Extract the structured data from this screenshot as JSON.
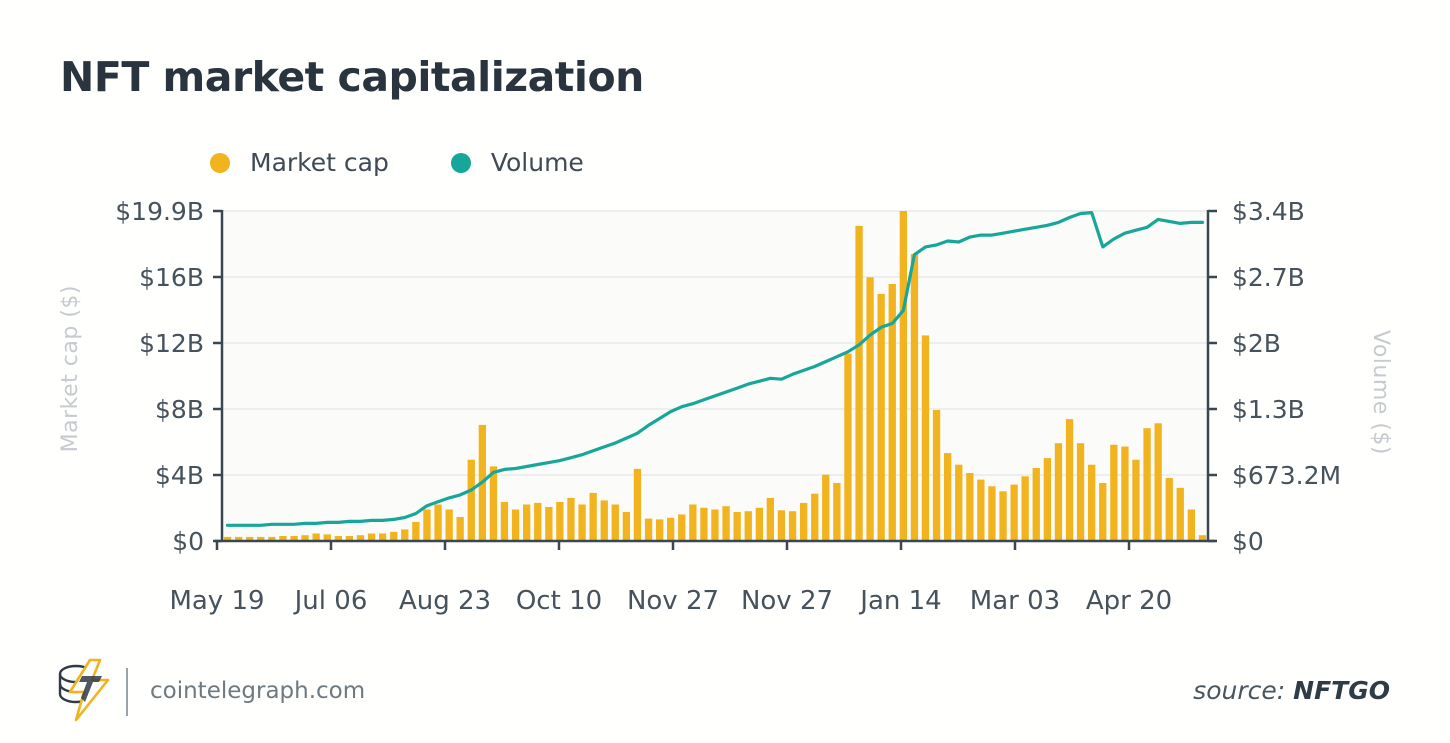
{
  "title": "NFT market capitalization",
  "footer": {
    "site": "cointelegraph.com",
    "source_prefix": "source:",
    "source_name": "NFTGO"
  },
  "colors": {
    "bar": "#F1B31E",
    "line": "#17A79A",
    "title": "#29343E",
    "tick_label": "#46525C",
    "axis_title": "#C6CBD0",
    "axis_line": "#3A4750",
    "grid": "#EDEEEE",
    "plot_bg": "#FBFBF9",
    "legend_text": "#3F4A55",
    "footer_text": "#6E7A80",
    "source_text": "#4A555E",
    "source_brand": "#2F3B47",
    "logo_dark": "#2F3B47",
    "logo_yellow": "#F1B31E"
  },
  "chart_data": {
    "type": "bar+line combo",
    "title": "NFT market capitalization",
    "x_tick_labels": [
      "May 19",
      "Jul 06",
      "Aug 23",
      "Oct 10",
      "Nov 27",
      "Nov 27",
      "Jan 14",
      "Mar 03",
      "Apr 20"
    ],
    "left_axis": {
      "label": "Market cap ($)",
      "ticks": [
        "$19.9B",
        "$16B",
        "$12B",
        "$8B",
        "$4B",
        "$0"
      ],
      "max": 19.9,
      "unit": "billions USD"
    },
    "right_axis": {
      "label": "Volume ($)",
      "ticks": [
        "$3.4B",
        "$2.7B",
        "$2B",
        "$1.3B",
        "$673.2M",
        "$0"
      ],
      "max": 3.366,
      "unit": "billions USD"
    },
    "grid": "horizontal only",
    "legend_position": "top-left above plot",
    "series": [
      {
        "name": "Market cap",
        "type": "bar",
        "axis": "left",
        "unit": "$B",
        "values": [
          0.25,
          0.25,
          0.25,
          0.25,
          0.25,
          0.3,
          0.3,
          0.35,
          0.45,
          0.4,
          0.3,
          0.3,
          0.35,
          0.45,
          0.45,
          0.55,
          0.7,
          1.15,
          1.9,
          2.2,
          1.9,
          1.45,
          4.9,
          7.0,
          4.5,
          2.35,
          1.9,
          2.2,
          2.3,
          2.05,
          2.35,
          2.6,
          2.2,
          2.9,
          2.45,
          2.2,
          1.75,
          4.35,
          1.35,
          1.3,
          1.4,
          1.6,
          2.2,
          2.0,
          1.9,
          2.1,
          1.75,
          1.8,
          2.0,
          2.6,
          1.85,
          1.8,
          2.3,
          2.85,
          4.0,
          3.5,
          11.3,
          19.0,
          15.9,
          14.9,
          15.5,
          19.9,
          17.3,
          12.4,
          7.9,
          5.3,
          4.6,
          4.1,
          3.7,
          3.3,
          3.0,
          3.4,
          3.9,
          4.4,
          5.0,
          5.9,
          7.35,
          5.9,
          4.6,
          3.5,
          5.8,
          5.7,
          4.9,
          6.8,
          7.1,
          3.8,
          3.2,
          1.9,
          0.35
        ]
      },
      {
        "name": "Volume",
        "type": "line",
        "axis": "right",
        "unit": "$B",
        "values": [
          0.16,
          0.16,
          0.16,
          0.16,
          0.17,
          0.17,
          0.17,
          0.18,
          0.18,
          0.19,
          0.19,
          0.2,
          0.2,
          0.21,
          0.21,
          0.22,
          0.24,
          0.28,
          0.36,
          0.4,
          0.44,
          0.47,
          0.52,
          0.6,
          0.7,
          0.73,
          0.74,
          0.76,
          0.78,
          0.8,
          0.82,
          0.85,
          0.88,
          0.92,
          0.96,
          1.0,
          1.05,
          1.1,
          1.18,
          1.25,
          1.32,
          1.37,
          1.4,
          1.44,
          1.48,
          1.52,
          1.56,
          1.6,
          1.63,
          1.66,
          1.65,
          1.7,
          1.74,
          1.78,
          1.83,
          1.88,
          1.93,
          2.0,
          2.1,
          2.18,
          2.22,
          2.35,
          2.92,
          3.0,
          3.02,
          3.06,
          3.05,
          3.1,
          3.12,
          3.12,
          3.14,
          3.16,
          3.18,
          3.2,
          3.22,
          3.25,
          3.3,
          3.34,
          3.35,
          3.0,
          3.08,
          3.14,
          3.17,
          3.2,
          3.28,
          3.26,
          3.24,
          3.25,
          3.25
        ]
      }
    ]
  }
}
